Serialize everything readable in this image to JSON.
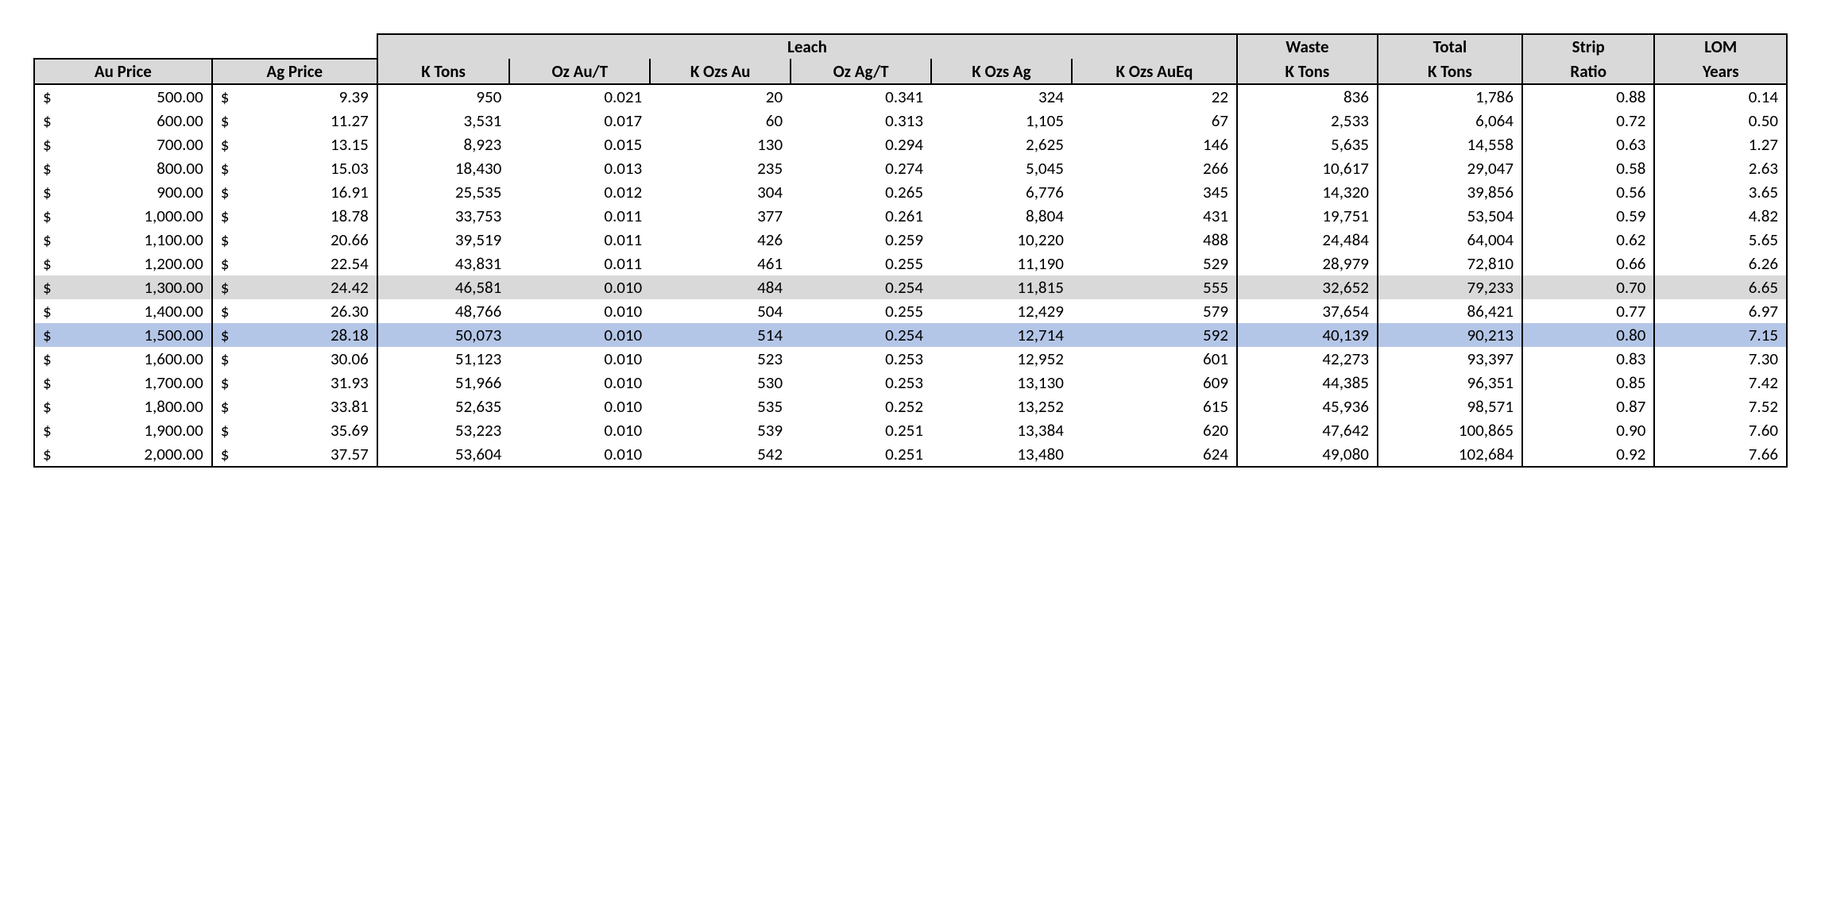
{
  "table": {
    "type": "table",
    "font_family": "Calibri",
    "header_fontsize_pt": 16,
    "body_fontsize_pt": 16,
    "header_bg": "#d9d9d9",
    "highlight_grey_bg": "#d9d9d9",
    "highlight_blue_bg": "#b4c6e7",
    "border_color": "#000000",
    "background_color": "#ffffff",
    "group_headers": {
      "leach": "Leach",
      "waste": "Waste",
      "total": "Total",
      "strip": "Strip",
      "lom": "LOM"
    },
    "columns": [
      {
        "key": "au_price",
        "label": "Au Price",
        "align": "currency",
        "width_pct": 8.6
      },
      {
        "key": "ag_price",
        "label": "Ag Price",
        "align": "currency",
        "width_pct": 8.0
      },
      {
        "key": "k_tons",
        "label": "K Tons",
        "align": "right",
        "width_pct": 6.4
      },
      {
        "key": "oz_au_t",
        "label": "Oz Au/T",
        "align": "right",
        "width_pct": 6.8
      },
      {
        "key": "k_ozs_au",
        "label": "K Ozs Au",
        "align": "right",
        "width_pct": 6.8
      },
      {
        "key": "oz_ag_t",
        "label": "Oz Ag/T",
        "align": "right",
        "width_pct": 6.8
      },
      {
        "key": "k_ozs_ag",
        "label": "K Ozs Ag",
        "align": "right",
        "width_pct": 6.8
      },
      {
        "key": "k_ozs_aueq",
        "label": "K Ozs AuEq",
        "align": "right",
        "width_pct": 8.0
      },
      {
        "key": "waste_kt",
        "label": "K Tons",
        "align": "right",
        "width_pct": 6.8
      },
      {
        "key": "total_kt",
        "label": "K Tons",
        "align": "right",
        "width_pct": 7.0
      },
      {
        "key": "strip",
        "label": "Ratio",
        "align": "right",
        "width_pct": 6.4
      },
      {
        "key": "lom",
        "label": "Years",
        "align": "right",
        "width_pct": 6.4
      }
    ],
    "highlight_rows": {
      "8": "grey",
      "10": "blue"
    },
    "rows": [
      {
        "au_price": "500.00",
        "ag_price": "9.39",
        "k_tons": "950",
        "oz_au_t": "0.021",
        "k_ozs_au": "20",
        "oz_ag_t": "0.341",
        "k_ozs_ag": "324",
        "k_ozs_aueq": "22",
        "waste_kt": "836",
        "total_kt": "1,786",
        "strip": "0.88",
        "lom": "0.14"
      },
      {
        "au_price": "600.00",
        "ag_price": "11.27",
        "k_tons": "3,531",
        "oz_au_t": "0.017",
        "k_ozs_au": "60",
        "oz_ag_t": "0.313",
        "k_ozs_ag": "1,105",
        "k_ozs_aueq": "67",
        "waste_kt": "2,533",
        "total_kt": "6,064",
        "strip": "0.72",
        "lom": "0.50"
      },
      {
        "au_price": "700.00",
        "ag_price": "13.15",
        "k_tons": "8,923",
        "oz_au_t": "0.015",
        "k_ozs_au": "130",
        "oz_ag_t": "0.294",
        "k_ozs_ag": "2,625",
        "k_ozs_aueq": "146",
        "waste_kt": "5,635",
        "total_kt": "14,558",
        "strip": "0.63",
        "lom": "1.27"
      },
      {
        "au_price": "800.00",
        "ag_price": "15.03",
        "k_tons": "18,430",
        "oz_au_t": "0.013",
        "k_ozs_au": "235",
        "oz_ag_t": "0.274",
        "k_ozs_ag": "5,045",
        "k_ozs_aueq": "266",
        "waste_kt": "10,617",
        "total_kt": "29,047",
        "strip": "0.58",
        "lom": "2.63"
      },
      {
        "au_price": "900.00",
        "ag_price": "16.91",
        "k_tons": "25,535",
        "oz_au_t": "0.012",
        "k_ozs_au": "304",
        "oz_ag_t": "0.265",
        "k_ozs_ag": "6,776",
        "k_ozs_aueq": "345",
        "waste_kt": "14,320",
        "total_kt": "39,856",
        "strip": "0.56",
        "lom": "3.65"
      },
      {
        "au_price": "1,000.00",
        "ag_price": "18.78",
        "k_tons": "33,753",
        "oz_au_t": "0.011",
        "k_ozs_au": "377",
        "oz_ag_t": "0.261",
        "k_ozs_ag": "8,804",
        "k_ozs_aueq": "431",
        "waste_kt": "19,751",
        "total_kt": "53,504",
        "strip": "0.59",
        "lom": "4.82"
      },
      {
        "au_price": "1,100.00",
        "ag_price": "20.66",
        "k_tons": "39,519",
        "oz_au_t": "0.011",
        "k_ozs_au": "426",
        "oz_ag_t": "0.259",
        "k_ozs_ag": "10,220",
        "k_ozs_aueq": "488",
        "waste_kt": "24,484",
        "total_kt": "64,004",
        "strip": "0.62",
        "lom": "5.65"
      },
      {
        "au_price": "1,200.00",
        "ag_price": "22.54",
        "k_tons": "43,831",
        "oz_au_t": "0.011",
        "k_ozs_au": "461",
        "oz_ag_t": "0.255",
        "k_ozs_ag": "11,190",
        "k_ozs_aueq": "529",
        "waste_kt": "28,979",
        "total_kt": "72,810",
        "strip": "0.66",
        "lom": "6.26"
      },
      {
        "au_price": "1,300.00",
        "ag_price": "24.42",
        "k_tons": "46,581",
        "oz_au_t": "0.010",
        "k_ozs_au": "484",
        "oz_ag_t": "0.254",
        "k_ozs_ag": "11,815",
        "k_ozs_aueq": "555",
        "waste_kt": "32,652",
        "total_kt": "79,233",
        "strip": "0.70",
        "lom": "6.65"
      },
      {
        "au_price": "1,400.00",
        "ag_price": "26.30",
        "k_tons": "48,766",
        "oz_au_t": "0.010",
        "k_ozs_au": "504",
        "oz_ag_t": "0.255",
        "k_ozs_ag": "12,429",
        "k_ozs_aueq": "579",
        "waste_kt": "37,654",
        "total_kt": "86,421",
        "strip": "0.77",
        "lom": "6.97"
      },
      {
        "au_price": "1,500.00",
        "ag_price": "28.18",
        "k_tons": "50,073",
        "oz_au_t": "0.010",
        "k_ozs_au": "514",
        "oz_ag_t": "0.254",
        "k_ozs_ag": "12,714",
        "k_ozs_aueq": "592",
        "waste_kt": "40,139",
        "total_kt": "90,213",
        "strip": "0.80",
        "lom": "7.15"
      },
      {
        "au_price": "1,600.00",
        "ag_price": "30.06",
        "k_tons": "51,123",
        "oz_au_t": "0.010",
        "k_ozs_au": "523",
        "oz_ag_t": "0.253",
        "k_ozs_ag": "12,952",
        "k_ozs_aueq": "601",
        "waste_kt": "42,273",
        "total_kt": "93,397",
        "strip": "0.83",
        "lom": "7.30"
      },
      {
        "au_price": "1,700.00",
        "ag_price": "31.93",
        "k_tons": "51,966",
        "oz_au_t": "0.010",
        "k_ozs_au": "530",
        "oz_ag_t": "0.253",
        "k_ozs_ag": "13,130",
        "k_ozs_aueq": "609",
        "waste_kt": "44,385",
        "total_kt": "96,351",
        "strip": "0.85",
        "lom": "7.42"
      },
      {
        "au_price": "1,800.00",
        "ag_price": "33.81",
        "k_tons": "52,635",
        "oz_au_t": "0.010",
        "k_ozs_au": "535",
        "oz_ag_t": "0.252",
        "k_ozs_ag": "13,252",
        "k_ozs_aueq": "615",
        "waste_kt": "45,936",
        "total_kt": "98,571",
        "strip": "0.87",
        "lom": "7.52"
      },
      {
        "au_price": "1,900.00",
        "ag_price": "35.69",
        "k_tons": "53,223",
        "oz_au_t": "0.010",
        "k_ozs_au": "539",
        "oz_ag_t": "0.251",
        "k_ozs_ag": "13,384",
        "k_ozs_aueq": "620",
        "waste_kt": "47,642",
        "total_kt": "100,865",
        "strip": "0.90",
        "lom": "7.60"
      },
      {
        "au_price": "2,000.00",
        "ag_price": "37.57",
        "k_tons": "53,604",
        "oz_au_t": "0.010",
        "k_ozs_au": "542",
        "oz_ag_t": "0.251",
        "k_ozs_ag": "13,480",
        "k_ozs_aueq": "624",
        "waste_kt": "49,080",
        "total_kt": "102,684",
        "strip": "0.92",
        "lom": "7.66"
      }
    ]
  }
}
